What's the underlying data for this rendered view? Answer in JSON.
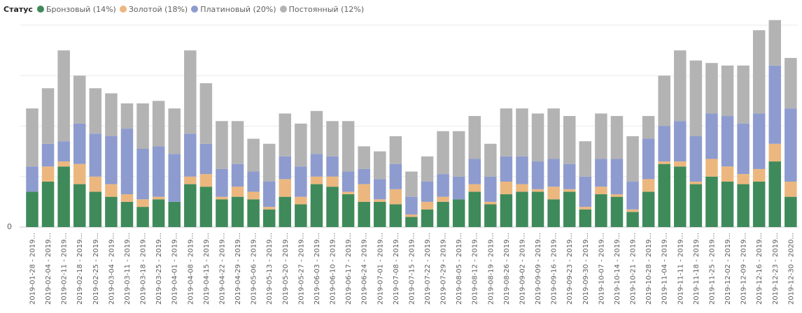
{
  "legend_title": "Статус",
  "chart_data": {
    "type": "bar",
    "stacked": true,
    "ylim": [
      0,
      80
    ],
    "y_tick_labels": [
      "0"
    ],
    "grid": true,
    "legend_position": "top-left",
    "categories": [
      "2019-01-28 - 2019...",
      "2019-02-04 - 2019...",
      "2019-02-11 - 2019...",
      "2019-02-18 - 2019...",
      "2019-02-25 - 2019...",
      "2019-03-04 - 2019...",
      "2019-03-11 - 2019...",
      "2019-03-18 - 2019...",
      "2019-03-25 - 2019...",
      "2019-04-01 - 2019...",
      "2019-04-08 - 2019...",
      "2019-04-15 - 2019...",
      "2019-04-22 - 2019...",
      "2019-04-29 - 2019...",
      "2019-05-06 - 2019...",
      "2019-05-13 - 2019...",
      "2019-05-20 - 2019...",
      "2019-05-27 - 2019...",
      "2019-06-03 - 2019...",
      "2019-06-10 - 2019...",
      "2019-06-17 - 2019...",
      "2019-06-24 - 2019...",
      "2019-07-01 - 2019...",
      "2019-07-08 - 2019...",
      "2019-07-15 - 2019...",
      "2019-07-22 - 2019...",
      "2019-07-29 - 2019...",
      "2019-08-05 - 2019...",
      "2019-08-12 - 2019...",
      "2019-08-19 - 2019...",
      "2019-08-26 - 2019...",
      "2019-09-02 - 2019...",
      "2019-09-09 - 2019...",
      "2019-09-16 - 2019...",
      "2019-09-23 - 2019...",
      "2019-09-30 - 2019...",
      "2019-10-07 - 2019...",
      "2019-10-14 - 2019...",
      "2019-10-21 - 2019...",
      "2019-10-28 - 2019...",
      "2019-11-04 - 2019...",
      "2019-11-11 - 2019...",
      "2019-11-18 - 2019...",
      "2019-11-25 - 2019...",
      "2019-12-02 - 2019...",
      "2019-12-09 - 2019...",
      "2019-12-16 - 2019...",
      "2019-12-23 - 2019...",
      "2019-12-30 - 2020..."
    ],
    "series": [
      {
        "name": "Бронзовый (14%)",
        "color": "#3f8a5a",
        "values": [
          14,
          18,
          24,
          17,
          14,
          12,
          10,
          8,
          11,
          10,
          17,
          16,
          11,
          12,
          11,
          7,
          12,
          9,
          17,
          16,
          13,
          10,
          10,
          9,
          4,
          7,
          10,
          11,
          14,
          9,
          13,
          14,
          14,
          11,
          14,
          7,
          13,
          12,
          6,
          14,
          25,
          24,
          17,
          20,
          18,
          17,
          18,
          26,
          12
        ]
      },
      {
        "name": "Золотой (18%)",
        "color": "#ecb77e",
        "values": [
          0,
          6,
          2,
          8,
          6,
          5,
          3,
          3,
          1,
          0,
          3,
          5,
          1,
          4,
          3,
          1,
          7,
          3,
          3,
          4,
          1,
          7,
          1,
          6,
          1,
          3,
          2,
          0,
          3,
          1,
          5,
          3,
          1,
          5,
          1,
          1,
          3,
          1,
          1,
          5,
          1,
          2,
          1,
          7,
          6,
          4,
          5,
          7,
          6
        ]
      },
      {
        "name": "Платиновый (20%)",
        "color": "#8d9bcf",
        "values": [
          10,
          9,
          8,
          16,
          17,
          19,
          26,
          20,
          20,
          19,
          17,
          12,
          11,
          9,
          8,
          10,
          9,
          12,
          9,
          8,
          8,
          6,
          8,
          10,
          7,
          8,
          9,
          9,
          10,
          10,
          10,
          11,
          11,
          11,
          10,
          12,
          11,
          14,
          11,
          16,
          14,
          16,
          18,
          18,
          20,
          20,
          22,
          31,
          29
        ]
      },
      {
        "name": "Постоянный (12%)",
        "color": "#b3b3b3",
        "values": [
          23,
          22,
          36,
          19,
          18,
          17,
          10,
          18,
          18,
          18,
          33,
          24,
          19,
          17,
          13,
          15,
          17,
          17,
          17,
          14,
          20,
          9,
          11,
          11,
          10,
          10,
          17,
          18,
          17,
          13,
          19,
          19,
          19,
          20,
          19,
          14,
          18,
          17,
          18,
          9,
          20,
          28,
          30,
          20,
          20,
          23,
          33,
          18,
          20
        ]
      }
    ]
  }
}
